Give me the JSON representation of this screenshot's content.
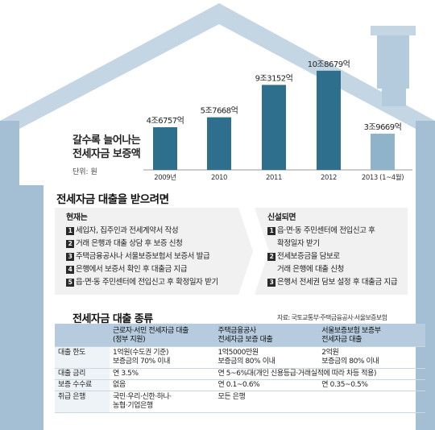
{
  "chart_data": {
    "type": "bar",
    "title_lines": [
      "갈수록 늘어나는",
      "전세자금 보증액"
    ],
    "unit": "단위: 원",
    "categories": [
      "2009년",
      "2010",
      "2011",
      "2012",
      "2013 (1~4월)"
    ],
    "values": [
      467575000000,
      576680000000,
      931520000000,
      1086790000000,
      396690000000
    ],
    "value_labels": [
      "4조6757억",
      "5조7668억",
      "9조3152억",
      "10조8679억",
      "3조9669억"
    ],
    "ylim": [
      0,
      1200000000000
    ],
    "colors": [
      "#2e6f8e",
      "#2e6f8e",
      "#2e6f8e",
      "#2e6f8e",
      "#8fb3c9"
    ],
    "grid": false
  },
  "process": {
    "title": "전세자금 대출을 받으려면",
    "current": {
      "heading": "현재는",
      "steps": [
        {
          "num": "1",
          "text": "세입자, 집주인과 전세계약서 작성"
        },
        {
          "num": "2",
          "text": "거래 은행과 대출 상담 후 보증 신청"
        },
        {
          "num": "3",
          "text": "주택금융공사나 서울보증보험서 보증서 발급"
        },
        {
          "num": "4",
          "text": "은행에서 보증서 확인 후 대출금 지급"
        },
        {
          "num": "5",
          "text": "읍·면·동 주민센터에 전입신고 후 확정일자 받기"
        }
      ]
    },
    "new": {
      "heading": "신설되면",
      "steps": [
        {
          "num": "1",
          "text": "읍·면·동 주민센터에 전입신고 후",
          "cont": "확정일자 받기"
        },
        {
          "num": "2",
          "text": "전세보증금을 담보로",
          "cont": "거래 은행에 대출 신청"
        },
        {
          "num": "3",
          "text": "은행서 전세권 담보 설정 후 대출금 지급"
        }
      ]
    }
  },
  "loan_table": {
    "title": "전세자금 대출 종류",
    "source": "자료: 국토교통부·주택금융공사·서울보증보험",
    "headers": [
      {
        "line1": "",
        "line2": ""
      },
      {
        "line1": "근로자·서민 전세자금 대출",
        "line2": "(정부 지원)"
      },
      {
        "line1": "주택금융공사",
        "line2": "전세자금 보증 대출"
      },
      {
        "line1": "서울보증보험 보증부",
        "line2": "전세자금 대출"
      }
    ],
    "rows": [
      {
        "label": "대출 한도",
        "c1": "1억원(수도권 기준)",
        "c1b": "보증금의 70% 이내",
        "c2": "1억5000만원",
        "c2b": "보증금의 80% 이내",
        "c3": "2억원",
        "c3b": "보증금의 80% 이내"
      },
      {
        "label": "대출 금리",
        "c1": "연 3.5%",
        "c23": "연 5~6%대(개인 신용등급·거래실적에 따라 차등 적용)"
      },
      {
        "label": "보증 수수료",
        "c1": "없음",
        "c2": "연 0.1~0.6%",
        "c3": "연 0.35~0.5%"
      },
      {
        "label": "취급 은행",
        "c1": "국민·우리·신한·하나·",
        "c1b": "농협·기업은행",
        "c2": "모든 은행",
        "c3": ""
      }
    ]
  },
  "colors": {
    "house_body": "#a4bfd3",
    "roof_light": "#c4d6e3",
    "panel": "#f1f1f1",
    "table_header": "#b6ccde"
  }
}
